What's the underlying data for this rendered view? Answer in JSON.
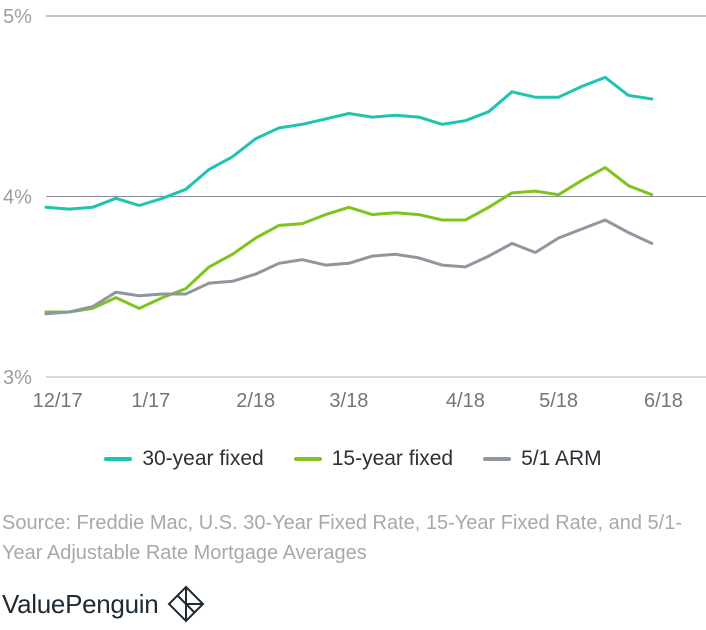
{
  "chart_data": {
    "type": "line",
    "title": "",
    "xlabel": "",
    "ylabel": "",
    "ylim": [
      3,
      5
    ],
    "y_ticks": [
      "5%",
      "4%",
      "3%"
    ],
    "y_tick_values": [
      5,
      4,
      3
    ],
    "x_tick_labels": [
      "12/17",
      "1/17",
      "2/18",
      "3/18",
      "4/18",
      "5/18",
      "6/18"
    ],
    "x_tick_index": [
      0.5,
      4.5,
      9,
      13,
      18,
      22,
      26.5
    ],
    "grid": "horizontal",
    "legend_placement": "bottom",
    "colors": {
      "30yr": "#1fc4ae",
      "15yr": "#7fc41e",
      "arm": "#8e979f",
      "grid": "#8a8f94",
      "axis": "#c9cdd0"
    },
    "series": [
      {
        "name": "30-year fixed",
        "color": "#1fc4ae",
        "values": [
          3.94,
          3.93,
          3.94,
          3.99,
          3.95,
          3.99,
          4.04,
          4.15,
          4.22,
          4.32,
          4.38,
          4.4,
          4.43,
          4.46,
          4.44,
          4.45,
          4.44,
          4.4,
          4.42,
          4.47,
          4.58,
          4.55,
          4.55,
          4.61,
          4.66,
          4.56,
          4.54
        ]
      },
      {
        "name": "15-year fixed",
        "color": "#7fc41e",
        "values": [
          3.36,
          3.36,
          3.38,
          3.44,
          3.38,
          3.44,
          3.49,
          3.61,
          3.68,
          3.77,
          3.84,
          3.85,
          3.9,
          3.94,
          3.9,
          3.91,
          3.9,
          3.87,
          3.87,
          3.94,
          4.02,
          4.03,
          4.01,
          4.09,
          4.16,
          4.06,
          4.01
        ]
      },
      {
        "name": "5/1 ARM",
        "color": "#8e979f",
        "values": [
          3.35,
          3.36,
          3.39,
          3.47,
          3.45,
          3.46,
          3.46,
          3.52,
          3.53,
          3.57,
          3.63,
          3.65,
          3.62,
          3.63,
          3.67,
          3.68,
          3.66,
          3.62,
          3.61,
          3.67,
          3.74,
          3.69,
          3.77,
          3.82,
          3.87,
          3.8,
          3.74
        ]
      }
    ]
  },
  "legend": {
    "item_30yr": "30-year fixed",
    "item_15yr": "15-year fixed",
    "item_arm": "5/1 ARM"
  },
  "source_text": "Source: Freddie Mac, U.S. 30-Year Fixed Rate, 15-Year Fixed Rate, and 5/1-Year Adjustable Rate Mortgage Averages",
  "logo": {
    "text": "ValuePenguin",
    "icon": "valuepenguin-diamond-icon"
  }
}
